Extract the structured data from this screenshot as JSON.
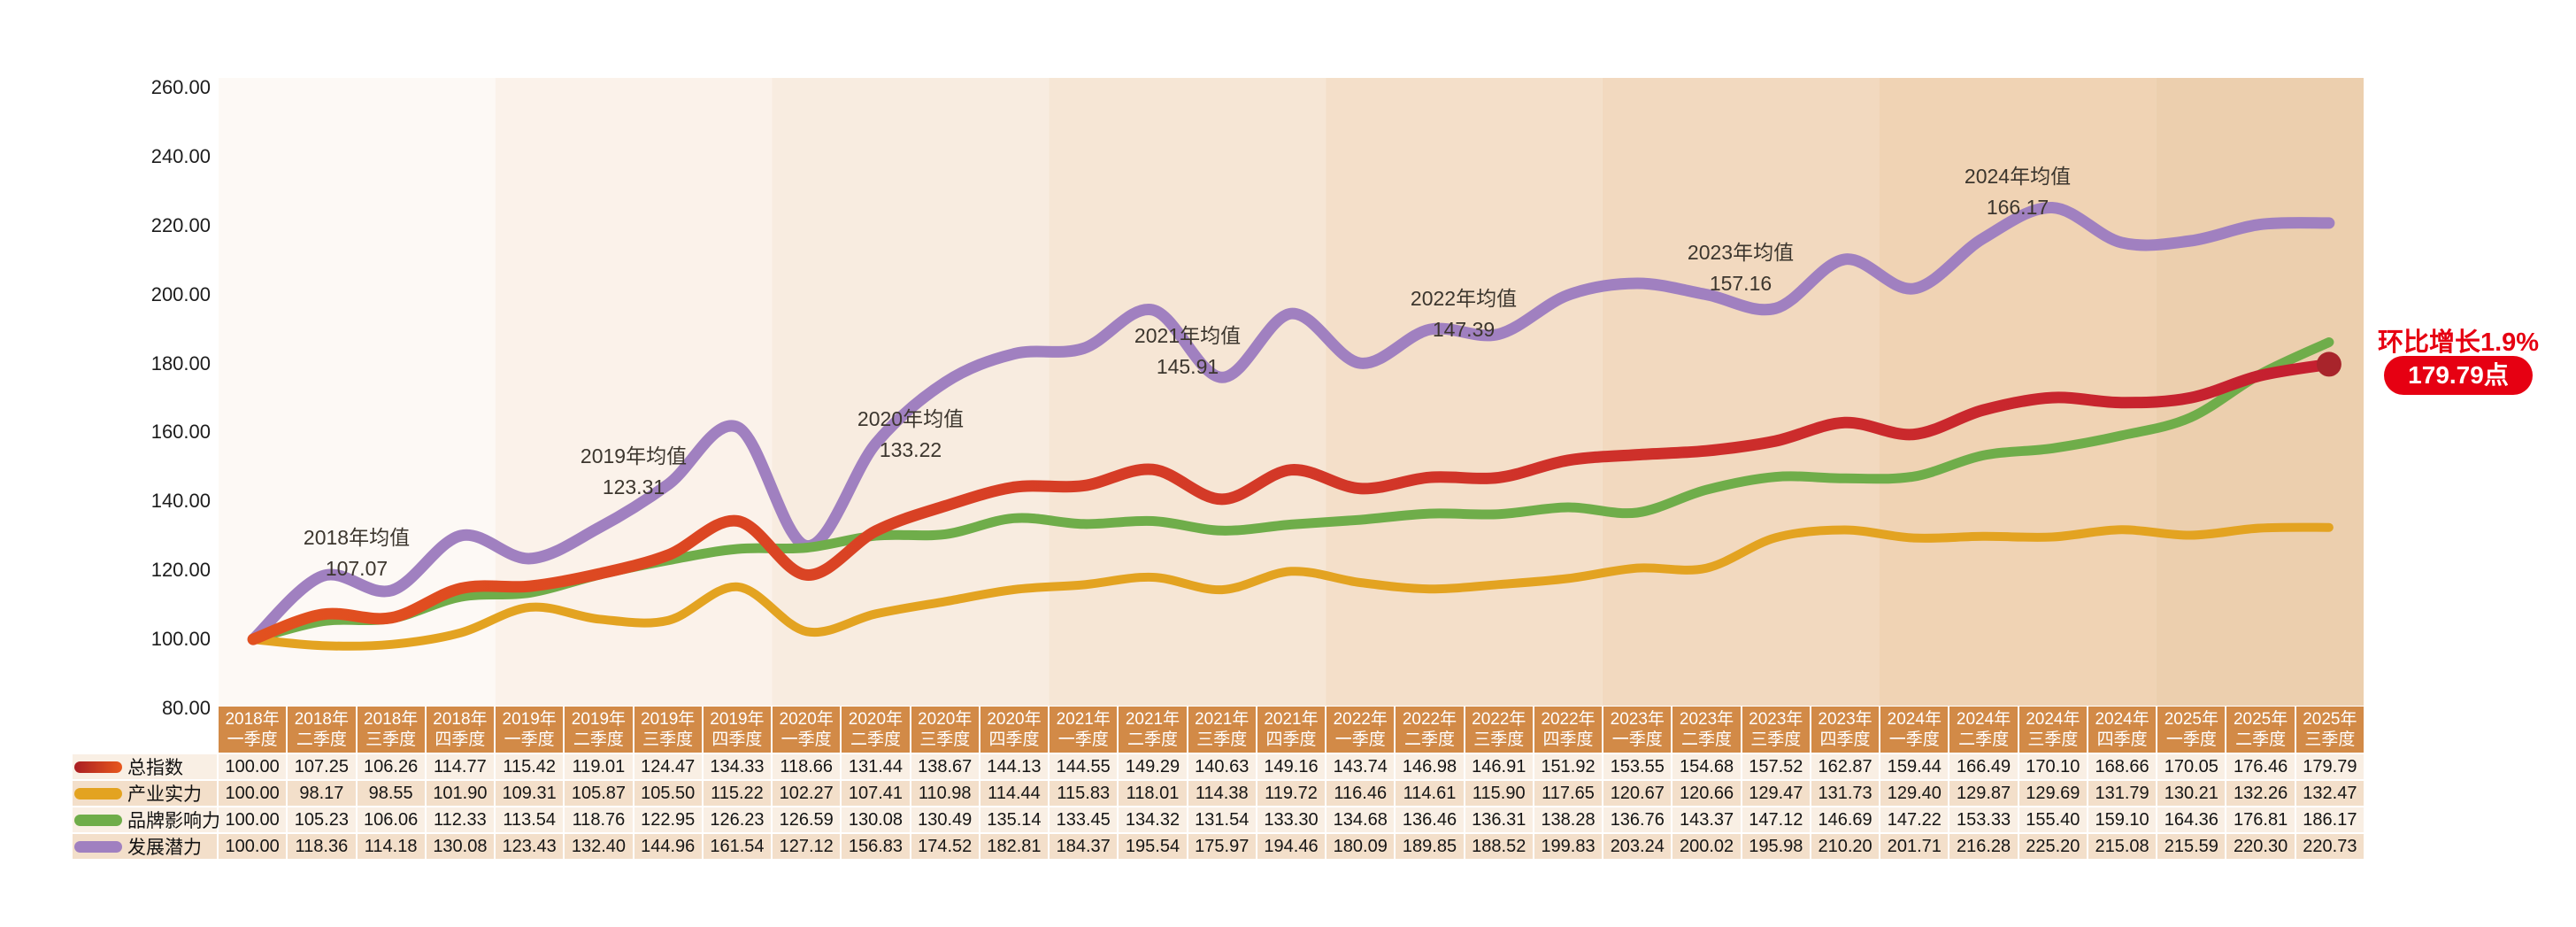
{
  "chart_data": {
    "type": "line",
    "title": "",
    "categories": [
      {
        "year": "2018年",
        "quarter": "一季度"
      },
      {
        "year": "2018年",
        "quarter": "二季度"
      },
      {
        "year": "2018年",
        "quarter": "三季度"
      },
      {
        "year": "2018年",
        "quarter": "四季度"
      },
      {
        "year": "2019年",
        "quarter": "一季度"
      },
      {
        "year": "2019年",
        "quarter": "二季度"
      },
      {
        "year": "2019年",
        "quarter": "三季度"
      },
      {
        "year": "2019年",
        "quarter": "四季度"
      },
      {
        "year": "2020年",
        "quarter": "一季度"
      },
      {
        "year": "2020年",
        "quarter": "二季度"
      },
      {
        "year": "2020年",
        "quarter": "三季度"
      },
      {
        "year": "2020年",
        "quarter": "四季度"
      },
      {
        "year": "2021年",
        "quarter": "一季度"
      },
      {
        "year": "2021年",
        "quarter": "二季度"
      },
      {
        "year": "2021年",
        "quarter": "三季度"
      },
      {
        "year": "2021年",
        "quarter": "四季度"
      },
      {
        "year": "2022年",
        "quarter": "一季度"
      },
      {
        "year": "2022年",
        "quarter": "二季度"
      },
      {
        "year": "2022年",
        "quarter": "三季度"
      },
      {
        "year": "2022年",
        "quarter": "四季度"
      },
      {
        "year": "2023年",
        "quarter": "一季度"
      },
      {
        "year": "2023年",
        "quarter": "二季度"
      },
      {
        "year": "2023年",
        "quarter": "三季度"
      },
      {
        "year": "2023年",
        "quarter": "四季度"
      },
      {
        "year": "2024年",
        "quarter": "一季度"
      },
      {
        "year": "2024年",
        "quarter": "二季度"
      },
      {
        "year": "2024年",
        "quarter": "三季度"
      },
      {
        "year": "2024年",
        "quarter": "四季度"
      },
      {
        "year": "2025年",
        "quarter": "一季度"
      },
      {
        "year": "2025年",
        "quarter": "二季度"
      },
      {
        "year": "2025年",
        "quarter": "三季度"
      }
    ],
    "series": [
      {
        "id": "total-index",
        "name": "总指数",
        "width": 13,
        "color": "#d22823",
        "color_start": "#e2511f",
        "color_end": "#c41f30",
        "pill_gradient": [
          "#a91e23",
          "#e8581d"
        ],
        "values": [
          100.0,
          107.25,
          106.26,
          114.77,
          115.42,
          119.01,
          124.47,
          134.33,
          118.66,
          131.44,
          138.67,
          144.13,
          144.55,
          149.29,
          140.63,
          149.16,
          143.74,
          146.98,
          146.91,
          151.92,
          153.55,
          154.68,
          157.52,
          162.87,
          159.44,
          166.49,
          170.1,
          168.66,
          170.05,
          176.46,
          179.79
        ]
      },
      {
        "id": "industry-strength",
        "name": "产业实力",
        "width": 10,
        "color": "#e3a321",
        "values": [
          100.0,
          98.17,
          98.55,
          101.9,
          109.31,
          105.87,
          105.5,
          115.22,
          102.27,
          107.41,
          110.98,
          114.44,
          115.83,
          118.01,
          114.38,
          119.72,
          116.46,
          114.61,
          115.9,
          117.65,
          120.67,
          120.66,
          129.47,
          131.73,
          129.4,
          129.87,
          129.69,
          131.79,
          130.21,
          132.26,
          132.47
        ]
      },
      {
        "id": "brand-influence",
        "name": "品牌影响力",
        "width": 11,
        "color": "#6fad4a",
        "values": [
          100.0,
          105.23,
          106.06,
          112.33,
          113.54,
          118.76,
          122.95,
          126.23,
          126.59,
          130.08,
          130.49,
          135.14,
          133.45,
          134.32,
          131.54,
          133.3,
          134.68,
          136.46,
          136.31,
          138.28,
          136.76,
          143.37,
          147.12,
          146.69,
          147.22,
          153.33,
          155.4,
          159.1,
          164.36,
          176.81,
          186.17
        ]
      },
      {
        "id": "development-potential",
        "name": "发展潜力",
        "width": 13,
        "color": "#a080c0",
        "values": [
          100.0,
          118.36,
          114.18,
          130.08,
          123.43,
          132.4,
          144.96,
          161.54,
          127.12,
          156.83,
          174.52,
          182.81,
          184.37,
          195.54,
          175.97,
          194.46,
          180.09,
          189.85,
          188.52,
          199.83,
          203.24,
          200.02,
          195.98,
          210.2,
          201.71,
          216.28,
          225.2,
          215.08,
          215.59,
          220.3,
          220.73
        ]
      }
    ],
    "ylim": [
      80,
      260
    ],
    "y_ticks": [
      "260.00",
      "240.00",
      "220.00",
      "200.00",
      "180.00",
      "160.00",
      "140.00",
      "120.00",
      "100.00",
      "80.00"
    ],
    "grid": false,
    "legend_position": "table-row-headers",
    "annotations": [
      {
        "label": "2018年均值",
        "value": "107.07"
      },
      {
        "label": "2019年均值",
        "value": "123.31"
      },
      {
        "label": "2020年均值",
        "value": "133.22"
      },
      {
        "label": "2021年均值",
        "value": "145.91"
      },
      {
        "label": "2022年均值",
        "value": "147.39"
      },
      {
        "label": "2023年均值",
        "value": "157.16"
      },
      {
        "label": "2024年均值",
        "value": "166.17"
      }
    ],
    "year_band_colors": [
      "#fdf9f5",
      "#fbf2ea",
      "#f8ece0",
      "#f6e6d5",
      "#f4dfc9",
      "#f2d9bf",
      "#f0d3b4",
      "#eccfae"
    ],
    "quarters_per_year": [
      4,
      4,
      4,
      4,
      4,
      4,
      4,
      3
    ]
  },
  "table": {
    "header_bg": "#d28a47",
    "row_bg_light": "#f9efe4",
    "row_bg_dark": "#f3dfca"
  },
  "callout": {
    "growth_text": "环比增长1.9%",
    "value_text": "179.79点",
    "color": "#e60012"
  },
  "end_marker": {
    "color": "#a8242b"
  }
}
